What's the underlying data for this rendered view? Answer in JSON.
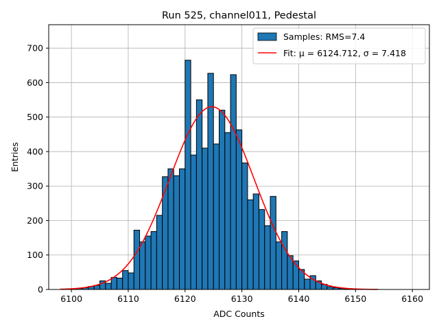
{
  "chart_data": {
    "type": "histogram",
    "title": "Run 525, channel011, Pedestal",
    "xlabel": "ADC Counts",
    "ylabel": "Entries",
    "xlim": [
      6096,
      6163
    ],
    "ylim": [
      0,
      768
    ],
    "xticks": [
      6100,
      6110,
      6120,
      6130,
      6140,
      6150,
      6160
    ],
    "yticks": [
      0,
      100,
      200,
      300,
      400,
      500,
      600,
      700
    ],
    "grid": true,
    "legend_position": "top-right",
    "bar_color": "#1f77b4",
    "fit_color": "#ff0000",
    "series": [
      {
        "name": "Samples: RMS=7.4",
        "kind": "bars",
        "bin_width": 1,
        "bin_starts": [
          6099,
          6100,
          6101,
          6102,
          6103,
          6104,
          6105,
          6106,
          6107,
          6108,
          6109,
          6110,
          6111,
          6112,
          6113,
          6114,
          6115,
          6116,
          6117,
          6118,
          6119,
          6120,
          6121,
          6122,
          6123,
          6124,
          6125,
          6126,
          6127,
          6128,
          6129,
          6130,
          6131,
          6132,
          6133,
          6134,
          6135,
          6136,
          6137,
          6138,
          6139,
          6140,
          6141,
          6142,
          6143,
          6144,
          6145,
          6146,
          6147,
          6148,
          6149,
          6150
        ],
        "values": [
          1,
          2,
          3,
          5,
          9,
          12,
          25,
          18,
          35,
          33,
          55,
          48,
          172,
          138,
          155,
          168,
          215,
          327,
          350,
          330,
          350,
          665,
          390,
          550,
          410,
          627,
          422,
          520,
          455,
          623,
          463,
          367,
          260,
          277,
          232,
          185,
          270,
          138,
          168,
          98,
          83,
          58,
          30,
          40,
          25,
          15,
          8,
          5,
          3,
          2,
          1,
          1
        ]
      },
      {
        "name": "Fit: μ = 6124.712, σ = 7.418",
        "kind": "gaussian",
        "mu": 6124.712,
        "sigma": 7.418,
        "amplitude": 530,
        "x_range": [
          6098,
          6154
        ]
      }
    ]
  }
}
